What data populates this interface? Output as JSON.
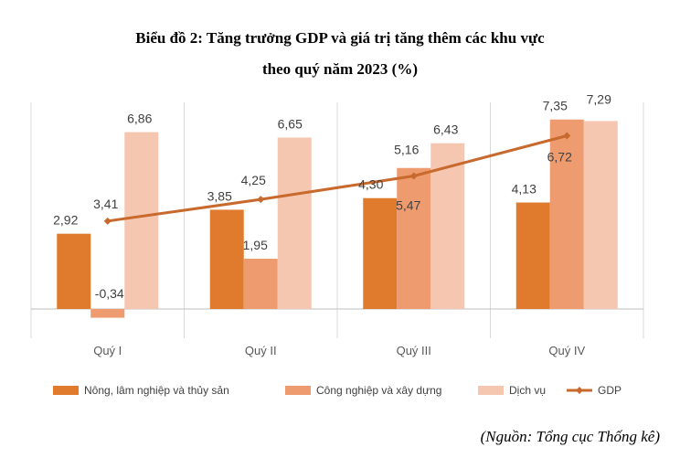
{
  "title_line1": "Biểu đồ 2: Tăng trưởng GDP và giá trị tăng thêm các khu vực",
  "title_line2": "theo quý năm 2023 (%)",
  "source": "(Nguồn: Tổng cục Thống kê)",
  "colors": {
    "agri": "#e07b2e",
    "industry": "#ee9c6f",
    "services": "#f5c6b0",
    "gdp": "#c8692d",
    "grid": "#d9d9d9",
    "axis": "#bfbfbf"
  },
  "chart_data": {
    "type": "bar",
    "title": "Biểu đồ 2: Tăng trưởng GDP và giá trị tăng thêm các khu vực theo quý năm 2023 (%)",
    "categories": [
      "Quý I",
      "Quý II",
      "Quý III",
      "Quý IV"
    ],
    "series": [
      {
        "name": "Nông, lâm nghiệp và thủy sản",
        "type": "bar",
        "values": [
          2.92,
          3.85,
          4.3,
          4.13
        ],
        "labels": [
          "2,92",
          "3,85",
          "4,30",
          "4,13"
        ]
      },
      {
        "name": "Công nghiệp và xây dựng",
        "type": "bar",
        "values": [
          -0.34,
          1.95,
          5.47,
          7.35
        ],
        "labels": [
          "-0,34",
          "1,95",
          "5,47",
          "7,35"
        ]
      },
      {
        "name": "Dịch vụ",
        "type": "bar",
        "values": [
          6.86,
          6.65,
          6.43,
          7.29
        ],
        "labels": [
          "6,86",
          "6,65",
          "6,43",
          "7,29"
        ]
      },
      {
        "name": "GDP",
        "type": "line",
        "values": [
          3.41,
          4.25,
          5.16,
          6.72
        ],
        "labels": [
          "3,41",
          "4,25",
          "5,16",
          "6,72"
        ]
      }
    ],
    "ylim": [
      -1,
      8
    ],
    "grid": "vertical",
    "legend": "bottom"
  }
}
